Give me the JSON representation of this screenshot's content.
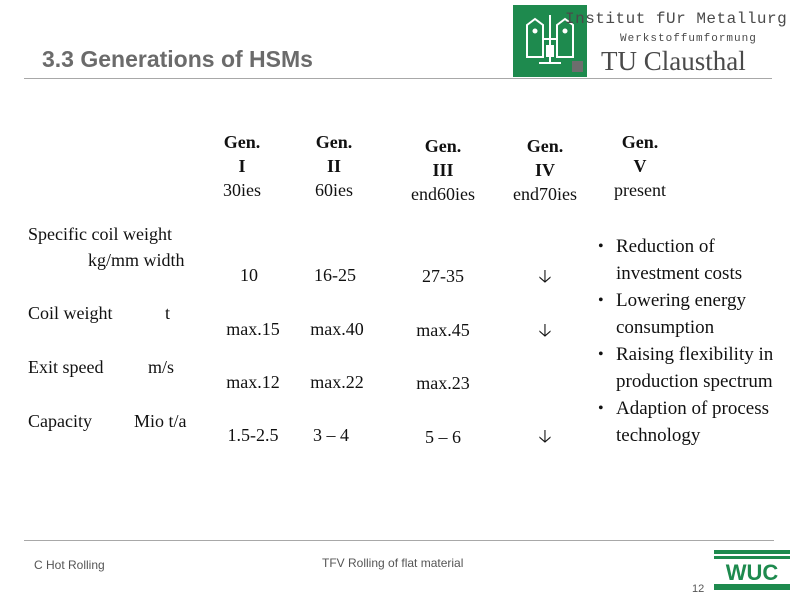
{
  "header": {
    "title": "3.3 Generations of HSMs",
    "institute_line": "Institut fUr Metallurg",
    "subline": "Werkstoffumformung",
    "university": "TU Clausthal"
  },
  "generations": [
    {
      "gen": "Gen.",
      "num": "I",
      "period": "30ies"
    },
    {
      "gen": "Gen.",
      "num": "II",
      "period": "60ies"
    },
    {
      "gen": "Gen.",
      "num": "III",
      "period": "end60ies"
    },
    {
      "gen": "Gen.",
      "num": "IV",
      "period": "end70ies"
    },
    {
      "gen": "Gen.",
      "num": "V",
      "period": "present"
    }
  ],
  "rows": [
    {
      "label": "Specific coil weight",
      "label2": "kg/mm width",
      "values": [
        "10",
        "16-25",
        "27-35"
      ],
      "arrow": "🡣"
    },
    {
      "label": "Coil weight",
      "unit": "t",
      "values": [
        "max.15",
        "max.40",
        "max.45"
      ],
      "arrow": "🡣"
    },
    {
      "label": "Exit speed",
      "unit": "m/s",
      "values": [
        "max.12",
        "max.22",
        "max.23"
      ],
      "arrow": ""
    },
    {
      "label": "Capacity",
      "unit": "Mio t/a",
      "values": [
        "1.5-2.5",
        "3 – 4",
        "5 – 6"
      ],
      "arrow": "🡣"
    }
  ],
  "gen5_bullets": [
    "Reduction of investment costs",
    "Lowering energy consumption",
    "Raising flexibility in production spectrum",
    "Adaption of process technology"
  ],
  "footer": {
    "left": "C Hot Rolling",
    "center": "TFV Rolling of flat material",
    "page": "12",
    "logo_text": "WUC"
  },
  "colors": {
    "logo_green": "#1e8a4e",
    "title_gray": "#6b6b6b"
  }
}
